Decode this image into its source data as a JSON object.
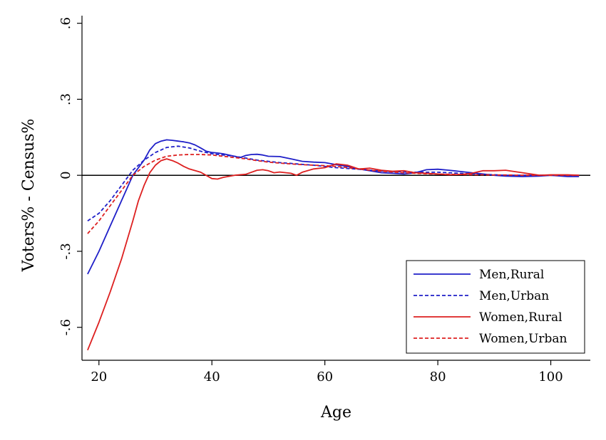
{
  "chart_data": {
    "type": "line",
    "title": "",
    "xlabel": "Age",
    "ylabel": "Voters% - Census%",
    "xlim": [
      17,
      107
    ],
    "ylim": [
      -0.73,
      0.63
    ],
    "xticks": [
      20,
      40,
      60,
      80,
      100
    ],
    "xtick_labels": [
      "20",
      "40",
      "60",
      "80",
      "100"
    ],
    "yticks": [
      -0.6,
      -0.3,
      0,
      0.3,
      0.6
    ],
    "ytick_labels": [
      "-.6",
      "-.3",
      "0",
      ".3",
      ".6"
    ],
    "zero_line": true,
    "grid": false,
    "legend_position": "bottom-right",
    "series": [
      {
        "name": "Men,Rural",
        "color": "#1f1fc8",
        "dash": "solid",
        "x": [
          18,
          20,
          22,
          24,
          26,
          28,
          29,
          30,
          31,
          32,
          33,
          34,
          35,
          36,
          37,
          38,
          39,
          40,
          41,
          42,
          43,
          44,
          45,
          46,
          47,
          48,
          49,
          50,
          52,
          54,
          56,
          58,
          60,
          62,
          64,
          66,
          68,
          70,
          72,
          74,
          76,
          78,
          80,
          82,
          84,
          86,
          88,
          90,
          92,
          95,
          98,
          100,
          103,
          105
        ],
        "values": [
          -0.39,
          -0.3,
          -0.2,
          -0.1,
          0.0,
          0.06,
          0.1,
          0.125,
          0.135,
          0.14,
          0.138,
          0.135,
          0.132,
          0.128,
          0.12,
          0.108,
          0.095,
          0.09,
          0.088,
          0.085,
          0.08,
          0.075,
          0.07,
          0.078,
          0.082,
          0.083,
          0.08,
          0.075,
          0.074,
          0.065,
          0.055,
          0.052,
          0.05,
          0.042,
          0.035,
          0.025,
          0.018,
          0.01,
          0.008,
          0.005,
          0.01,
          0.022,
          0.024,
          0.02,
          0.015,
          0.01,
          0.005,
          0.0,
          -0.003,
          -0.005,
          -0.003,
          0.0,
          -0.005,
          -0.005
        ]
      },
      {
        "name": "Men,Urban",
        "color": "#1f1fc8",
        "dash": "dashed",
        "x": [
          18,
          20,
          22,
          24,
          26,
          28,
          30,
          32,
          34,
          36,
          38,
          40,
          42,
          44,
          46,
          48,
          50,
          52,
          54,
          56,
          58,
          60,
          62,
          64,
          66,
          68,
          70,
          72,
          74,
          76,
          78,
          80,
          82,
          84,
          86,
          88,
          90,
          92,
          95,
          98,
          100,
          103,
          105
        ],
        "values": [
          -0.18,
          -0.15,
          -0.1,
          -0.04,
          0.02,
          0.06,
          0.09,
          0.11,
          0.115,
          0.108,
          0.095,
          0.085,
          0.08,
          0.075,
          0.068,
          0.06,
          0.055,
          0.05,
          0.047,
          0.043,
          0.04,
          0.035,
          0.03,
          0.027,
          0.024,
          0.02,
          0.017,
          0.015,
          0.013,
          0.012,
          0.012,
          0.012,
          0.01,
          0.008,
          0.006,
          0.004,
          0.002,
          0.0,
          0.0,
          0.0,
          0.0,
          0.0,
          0.0
        ]
      },
      {
        "name": "Women,Rural",
        "color": "#dd2020",
        "dash": "solid",
        "x": [
          18,
          20,
          22,
          24,
          26,
          27,
          28,
          29,
          30,
          31,
          32,
          33,
          34,
          35,
          36,
          38,
          40,
          41,
          42,
          44,
          46,
          48,
          49,
          50,
          51,
          52,
          54,
          55,
          56,
          58,
          60,
          62,
          64,
          66,
          68,
          70,
          72,
          74,
          76,
          78,
          80,
          82,
          84,
          86,
          88,
          90,
          92,
          95,
          98,
          100,
          103,
          105
        ],
        "values": [
          -0.69,
          -0.58,
          -0.46,
          -0.33,
          -0.18,
          -0.1,
          -0.04,
          0.01,
          0.04,
          0.058,
          0.065,
          0.058,
          0.048,
          0.035,
          0.025,
          0.012,
          -0.013,
          -0.015,
          -0.008,
          0.0,
          0.004,
          0.02,
          0.022,
          0.018,
          0.01,
          0.013,
          0.008,
          0.0,
          0.012,
          0.025,
          0.03,
          0.045,
          0.04,
          0.025,
          0.028,
          0.02,
          0.016,
          0.018,
          0.01,
          0.008,
          0.005,
          0.002,
          0.003,
          0.008,
          0.018,
          0.018,
          0.02,
          0.01,
          0.0,
          0.002,
          0.002,
          0.0
        ]
      },
      {
        "name": "Women,Urban",
        "color": "#dd2020",
        "dash": "dashed",
        "x": [
          18,
          20,
          22,
          24,
          26,
          28,
          30,
          32,
          34,
          36,
          38,
          40,
          42,
          44,
          46,
          48,
          50,
          52,
          54,
          56,
          58,
          60,
          62,
          64,
          66,
          68,
          70,
          72,
          74,
          76,
          78,
          80,
          82,
          84,
          86,
          88,
          90,
          92,
          95,
          98,
          100,
          103,
          105
        ],
        "values": [
          -0.23,
          -0.18,
          -0.12,
          -0.06,
          0.0,
          0.035,
          0.06,
          0.075,
          0.08,
          0.082,
          0.082,
          0.08,
          0.075,
          0.07,
          0.065,
          0.058,
          0.052,
          0.048,
          0.045,
          0.042,
          0.04,
          0.038,
          0.035,
          0.03,
          0.025,
          0.02,
          0.016,
          0.013,
          0.01,
          0.008,
          0.006,
          0.005,
          0.004,
          0.003,
          0.002,
          0.002,
          0.001,
          0.001,
          0.0,
          0.0,
          0.0,
          0.0,
          0.0
        ]
      }
    ]
  }
}
